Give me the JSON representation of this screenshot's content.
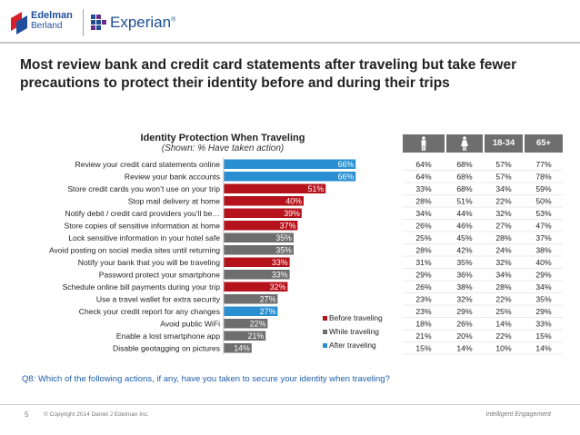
{
  "brand": {
    "edelman_line1": "Edelman",
    "edelman_line2": "Berland",
    "experian": "Experian",
    "experian_mark": "®"
  },
  "headline": "Most review bank and credit card statements after traveling but take fewer precautions to protect their identity before and during their trips",
  "colors": {
    "before": "#b5121b",
    "while": "#6e6e6e",
    "after": "#2a8fd0",
    "header_gray": "#6e6e6e"
  },
  "chart_data": {
    "type": "bar",
    "orientation": "horizontal",
    "title": "Identity Protection When Traveling",
    "subtitle": "(Shown: % Have taken action)",
    "xlim": [
      0,
      100
    ],
    "categories": [
      "Review your credit card statements online",
      "Review your bank accounts",
      "Store credit cards you won’t use on your trip",
      "Stop mail delivery at home",
      "Notify debit / credit card providers you’ll be…",
      "Store copies of sensitive information at home",
      "Lock sensitive information in your hotel safe",
      "Avoid posting on social media sites until returning",
      "Notify your bank that you will be traveling",
      "Password protect your smartphone",
      "Schedule online bill payments during your trip",
      "Use a travel wallet for extra security",
      "Check your credit report for any changes",
      "Avoid public WiFi",
      "Enable a lost smartphone app",
      "Disable geotagging on pictures"
    ],
    "values": [
      66,
      66,
      51,
      40,
      39,
      37,
      35,
      35,
      33,
      33,
      32,
      27,
      27,
      22,
      21,
      14
    ],
    "value_labels": [
      "66%",
      "66%",
      "51%",
      "40%",
      "39%",
      "37%",
      "35%",
      "35%",
      "33%",
      "33%",
      "32%",
      "27%",
      "27%",
      "22%",
      "21%",
      "14%"
    ],
    "phase": [
      "after",
      "after",
      "before",
      "before",
      "before",
      "before",
      "while",
      "while",
      "before",
      "while",
      "before",
      "while",
      "after",
      "while",
      "while",
      "while"
    ],
    "legend": [
      {
        "key": "before",
        "label": "Before traveling"
      },
      {
        "key": "while",
        "label": "While traveling"
      },
      {
        "key": "after",
        "label": "After traveling"
      }
    ],
    "legend_position": "bottom-right"
  },
  "table": {
    "headers": [
      "",
      "",
      "18-34",
      "65+"
    ],
    "rows": [
      [
        "64%",
        "68%",
        "57%",
        "77%"
      ],
      [
        "64%",
        "68%",
        "57%",
        "78%"
      ],
      [
        "33%",
        "68%",
        "34%",
        "59%"
      ],
      [
        "28%",
        "51%",
        "22%",
        "50%"
      ],
      [
        "34%",
        "44%",
        "32%",
        "53%"
      ],
      [
        "26%",
        "46%",
        "27%",
        "47%"
      ],
      [
        "25%",
        "45%",
        "28%",
        "37%"
      ],
      [
        "28%",
        "42%",
        "24%",
        "38%"
      ],
      [
        "31%",
        "35%",
        "32%",
        "40%"
      ],
      [
        "29%",
        "36%",
        "34%",
        "29%"
      ],
      [
        "26%",
        "38%",
        "28%",
        "34%"
      ],
      [
        "23%",
        "32%",
        "22%",
        "35%"
      ],
      [
        "23%",
        "29%",
        "25%",
        "29%"
      ],
      [
        "18%",
        "26%",
        "14%",
        "33%"
      ],
      [
        "21%",
        "20%",
        "22%",
        "15%"
      ],
      [
        "15%",
        "14%",
        "10%",
        "14%"
      ]
    ],
    "male_icon": "male-figure-icon",
    "female_icon": "female-figure-icon"
  },
  "question": "Q8: Which of the following actions, if any, have you taken to secure your identity when traveling?",
  "footer": {
    "page": "5",
    "copyright": "© Copyright 2014 Daniel J Edelman Inc.",
    "tagline": "Intelligent Engagement"
  }
}
